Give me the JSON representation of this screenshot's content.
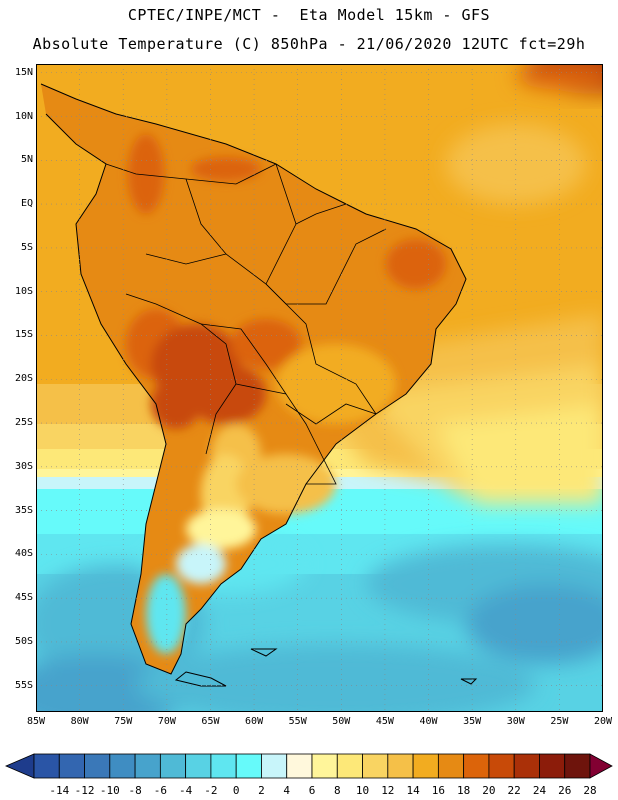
{
  "header": {
    "line1": "CPTEC/INPE/MCT -  Eta Model 15km - GFS",
    "line2": "Absolute Temperature (C) 850hPa - 21/06/2020 12UTC fct=29h"
  },
  "map": {
    "lat_labels": [
      "15N",
      "10N",
      "5N",
      "EQ",
      "5S",
      "10S",
      "15S",
      "20S",
      "25S",
      "30S",
      "35S",
      "40S",
      "45S",
      "50S",
      "55S"
    ],
    "lon_labels": [
      "85W",
      "80W",
      "75W",
      "70W",
      "65W",
      "60W",
      "55W",
      "50W",
      "45W",
      "40W",
      "35W",
      "30W",
      "25W",
      "20W"
    ],
    "lat_values": [
      15,
      10,
      5,
      0,
      -5,
      -10,
      -15,
      -20,
      -25,
      -30,
      -35,
      -40,
      -45,
      -50,
      -55
    ],
    "lon_values": [
      -85,
      -80,
      -75,
      -70,
      -65,
      -60,
      -55,
      -50,
      -45,
      -40,
      -35,
      -30,
      -25,
      -20
    ]
  },
  "colorbar": {
    "labels": [
      "-14",
      "-12",
      "-10",
      "-8",
      "-6",
      "-4",
      "-2",
      "0",
      "2",
      "4",
      "6",
      "8",
      "10",
      "12",
      "14",
      "16",
      "18",
      "20",
      "22",
      "24",
      "26",
      "28"
    ],
    "colors": [
      "#1e3c8c",
      "#2a55a6",
      "#3366b0",
      "#3a78b8",
      "#3f8dc2",
      "#47a3cc",
      "#4fbad6",
      "#58d2e4",
      "#5fe6f0",
      "#66fafa",
      "#c8f5fa",
      "#fff8dc",
      "#fff59a",
      "#fde878",
      "#f9d462",
      "#f5c048",
      "#f2ac20",
      "#e68a14",
      "#dc640a",
      "#c84a08",
      "#aa3008",
      "#8c1c0a",
      "#6e140c",
      "#820032"
    ]
  }
}
